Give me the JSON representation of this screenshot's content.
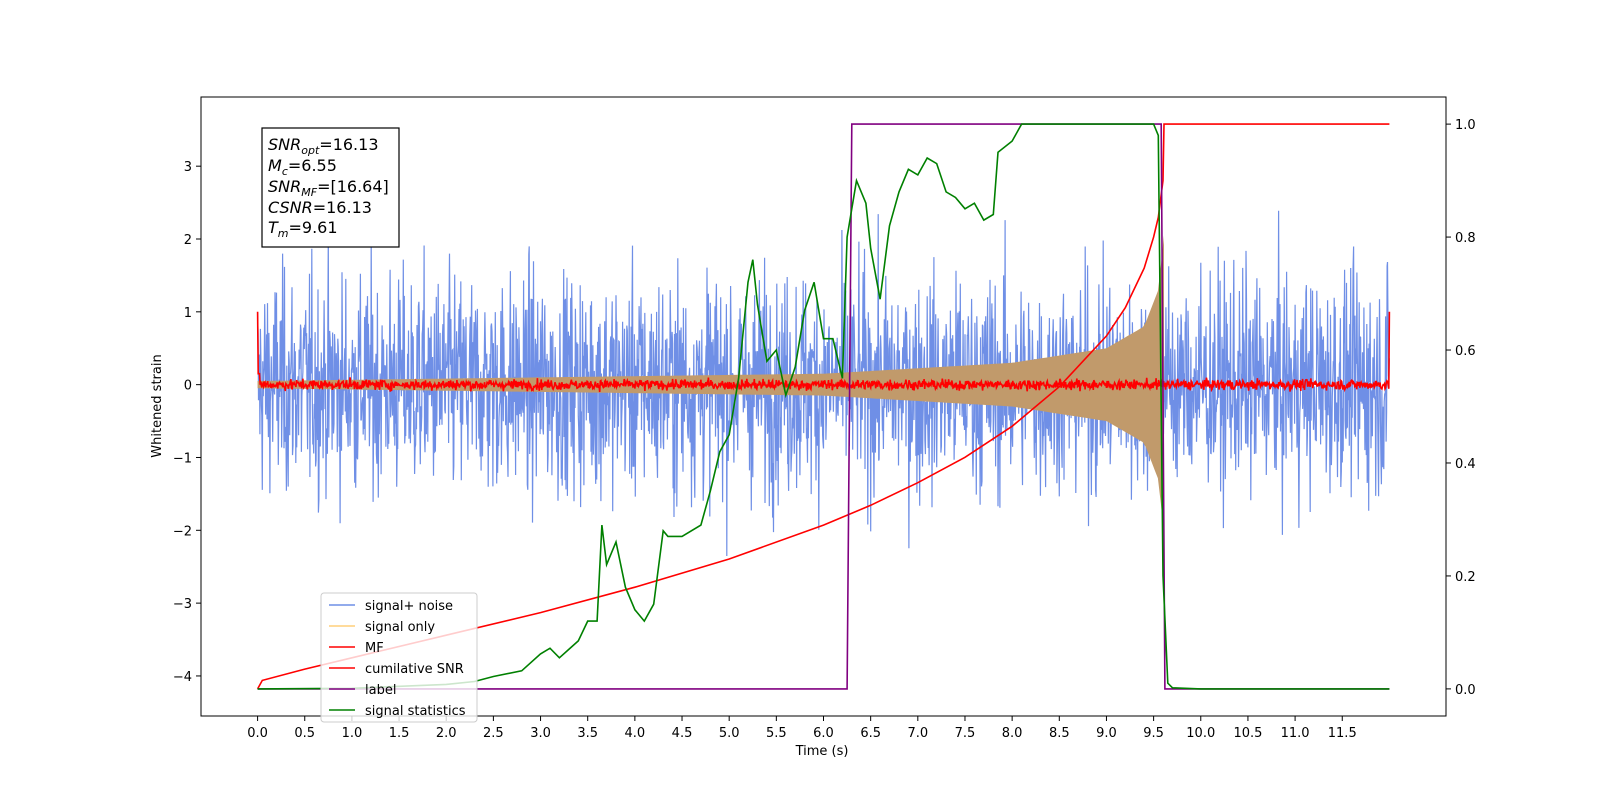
{
  "chart_data": {
    "type": "line",
    "title": "",
    "xlabel": "Time (s)",
    "ylabel": "Whitened strain",
    "xlim": [
      -0.6,
      12.6
    ],
    "ylim": [
      -4.55,
      3.95
    ],
    "y2lim": [
      -0.048,
      1.048
    ],
    "x_ticks": [
      "0.0",
      "0.5",
      "1.0",
      "1.5",
      "2.0",
      "2.5",
      "3.0",
      "3.5",
      "4.0",
      "4.5",
      "5.0",
      "5.5",
      "6.0",
      "6.5",
      "7.0",
      "7.5",
      "8.0",
      "8.5",
      "9.0",
      "9.5",
      "10.0",
      "10.5",
      "11.0",
      "11.5"
    ],
    "y_ticks": [
      "3",
      "2",
      "1",
      "0",
      "−1",
      "−2",
      "−3",
      "−4"
    ],
    "y2_ticks": [
      "1.0",
      "0.8",
      "0.6",
      "0.4",
      "0.2",
      "0.0"
    ],
    "grid": false,
    "legend_position": "lower-left",
    "annotation": [
      {
        "base": "SNR",
        "sub": "opt",
        "rest": "=16.13"
      },
      {
        "base": "M",
        "sub": "c",
        "rest": "=6.55"
      },
      {
        "base": "SNR",
        "sub": "MF",
        "rest": "=[16.64]"
      },
      {
        "base": "CSNR",
        "sub": "",
        "rest": "=16.13"
      },
      {
        "base": "T",
        "sub": "m",
        "rest": "=9.61"
      }
    ],
    "series": [
      {
        "name": "signal+ noise",
        "color": "#6f8fe6",
        "axis": "left",
        "kind": "noise",
        "x_range": [
          0,
          12
        ],
        "amplitude": [
          -3.9,
          3.6
        ]
      },
      {
        "name": "signal only",
        "color": "#ffcf7a",
        "axis": "left",
        "kind": "chirp",
        "x_range": [
          0,
          9.61
        ],
        "envelope": [
          [
            0,
            0.05
          ],
          [
            6.0,
            0.15
          ],
          [
            8.0,
            0.3
          ],
          [
            9.0,
            0.5
          ],
          [
            9.4,
            0.8
          ],
          [
            9.55,
            1.3
          ],
          [
            9.61,
            2.05
          ]
        ]
      },
      {
        "name": "MF",
        "color": "#ff0000",
        "axis": "left",
        "kind": "noise",
        "x_range": [
          0,
          12
        ],
        "amplitude": [
          -0.1,
          0.1
        ],
        "edges": [
          [
            0,
            1.0
          ],
          [
            12,
            1.0
          ]
        ]
      },
      {
        "name": "cumilative SNR",
        "color": "#ff0000",
        "axis": "right",
        "x": [
          0,
          0.05,
          0.5,
          1,
          2,
          3,
          4,
          5,
          6,
          6.5,
          7,
          7.5,
          8,
          8.5,
          9,
          9.2,
          9.4,
          9.5,
          9.55,
          9.6,
          9.61,
          12
        ],
        "y": [
          0,
          0.015,
          0.035,
          0.055,
          0.095,
          0.135,
          0.18,
          0.23,
          0.29,
          0.325,
          0.365,
          0.41,
          0.465,
          0.535,
          0.625,
          0.675,
          0.745,
          0.8,
          0.835,
          0.9,
          1.0,
          1.0
        ]
      },
      {
        "name": "label",
        "color": "#800080",
        "axis": "right",
        "x": [
          0,
          6.25,
          6.3,
          9.58,
          9.62,
          12
        ],
        "y": [
          0,
          0,
          1,
          1,
          0,
          0
        ]
      },
      {
        "name": "signal statistics",
        "color": "#008000",
        "axis": "right",
        "x": [
          0,
          1,
          2,
          2.3,
          2.5,
          2.8,
          3.0,
          3.1,
          3.2,
          3.3,
          3.4,
          3.5,
          3.6,
          3.65,
          3.7,
          3.8,
          3.9,
          4.0,
          4.1,
          4.2,
          4.3,
          4.35,
          4.5,
          4.7,
          4.8,
          4.9,
          5.0,
          5.1,
          5.2,
          5.25,
          5.3,
          5.4,
          5.5,
          5.6,
          5.7,
          5.8,
          5.9,
          6.0,
          6.1,
          6.2,
          6.25,
          6.3,
          6.35,
          6.45,
          6.5,
          6.6,
          6.7,
          6.8,
          6.9,
          7.0,
          7.1,
          7.2,
          7.3,
          7.4,
          7.5,
          7.6,
          7.7,
          7.8,
          7.85,
          8.0,
          8.1,
          8.3,
          8.5,
          8.7,
          9.0,
          9.3,
          9.5,
          9.55,
          9.6,
          9.65,
          9.7,
          10,
          12
        ],
        "y": [
          0,
          0.001,
          0.008,
          0.013,
          0.022,
          0.032,
          0.062,
          0.072,
          0.055,
          0.07,
          0.085,
          0.12,
          0.12,
          0.29,
          0.22,
          0.26,
          0.18,
          0.14,
          0.12,
          0.15,
          0.28,
          0.27,
          0.27,
          0.29,
          0.35,
          0.42,
          0.45,
          0.55,
          0.72,
          0.76,
          0.68,
          0.58,
          0.6,
          0.52,
          0.57,
          0.67,
          0.72,
          0.62,
          0.62,
          0.55,
          0.8,
          0.85,
          0.9,
          0.86,
          0.78,
          0.69,
          0.82,
          0.88,
          0.92,
          0.91,
          0.94,
          0.93,
          0.88,
          0.87,
          0.85,
          0.86,
          0.83,
          0.84,
          0.95,
          0.97,
          1.0,
          1.0,
          1.0,
          1.0,
          1.0,
          1.0,
          1.0,
          0.98,
          0.2,
          0.01,
          0.002,
          0,
          0
        ]
      }
    ]
  }
}
